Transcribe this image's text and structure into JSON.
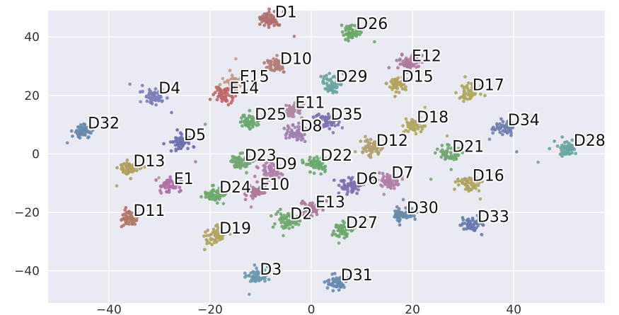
{
  "chart_data": {
    "type": "scatter",
    "title": "",
    "xlabel": "",
    "ylabel": "",
    "xlim": [
      -52,
      58
    ],
    "ylim": [
      -51,
      49
    ],
    "xticks": [
      -40,
      -20,
      0,
      20,
      40
    ],
    "yticks": [
      40,
      20,
      0,
      -20,
      -40
    ],
    "xtick_labels": [
      "−40",
      "−20",
      "0",
      "20",
      "40"
    ],
    "ytick_labels": [
      "40",
      "20",
      "0",
      "−20",
      "−40"
    ],
    "grid": true,
    "background": "#eaeaf2",
    "grid_color": "#ffffff",
    "clusters": [
      {
        "label": "D1",
        "x": -8,
        "y": 46,
        "color": "#b0706e"
      },
      {
        "label": "D26",
        "x": 8,
        "y": 42,
        "color": "#6aa86a"
      },
      {
        "label": "D10",
        "x": -7,
        "y": 30,
        "color": "#b0807a"
      },
      {
        "label": "E12",
        "x": 19,
        "y": 31,
        "color": "#b07a9c"
      },
      {
        "label": "E15",
        "x": -15,
        "y": 24,
        "color": "#c89888"
      },
      {
        "label": "D29",
        "x": 4,
        "y": 24,
        "color": "#6aa6a0"
      },
      {
        "label": "D15",
        "x": 17,
        "y": 24,
        "color": "#b0a460"
      },
      {
        "label": "D4",
        "x": -31,
        "y": 20,
        "color": "#8080b8"
      },
      {
        "label": "E14",
        "x": -17,
        "y": 20,
        "color": "#c06868"
      },
      {
        "label": "D17",
        "x": 31,
        "y": 21,
        "color": "#b0a860"
      },
      {
        "label": "E11",
        "x": -4,
        "y": 15,
        "color": "#b08aa0"
      },
      {
        "label": "D25",
        "x": -12,
        "y": 11,
        "color": "#6aa870"
      },
      {
        "label": "D35",
        "x": 3,
        "y": 11,
        "color": "#8070b0"
      },
      {
        "label": "D18",
        "x": 20,
        "y": 10,
        "color": "#b0a860"
      },
      {
        "label": "D34",
        "x": 38,
        "y": 9,
        "color": "#7080b0"
      },
      {
        "label": "D32",
        "x": -45,
        "y": 8,
        "color": "#6a8aa8"
      },
      {
        "label": "D8",
        "x": -3,
        "y": 7,
        "color": "#a080b0"
      },
      {
        "label": "D5",
        "x": -26,
        "y": 4,
        "color": "#7070b0"
      },
      {
        "label": "D28",
        "x": 51,
        "y": 2,
        "color": "#6aa6a0"
      },
      {
        "label": "D12",
        "x": 12,
        "y": 2,
        "color": "#b0a070"
      },
      {
        "label": "D21",
        "x": 27,
        "y": 0,
        "color": "#70a870"
      },
      {
        "label": "D23",
        "x": -14,
        "y": -3,
        "color": "#70a870"
      },
      {
        "label": "D22",
        "x": 1,
        "y": -3,
        "color": "#6aa870"
      },
      {
        "label": "D13",
        "x": -36,
        "y": -5,
        "color": "#b0a060"
      },
      {
        "label": "D9",
        "x": -8,
        "y": -6,
        "color": "#b080a8"
      },
      {
        "label": "E1",
        "x": -28,
        "y": -11,
        "color": "#b070a8"
      },
      {
        "label": "D7",
        "x": 15,
        "y": -9,
        "color": "#b080a8"
      },
      {
        "label": "D16",
        "x": 31,
        "y": -10,
        "color": "#b0a460"
      },
      {
        "label": "D6",
        "x": 8,
        "y": -11,
        "color": "#8070b0"
      },
      {
        "label": "D24",
        "x": -19,
        "y": -14,
        "color": "#70a870"
      },
      {
        "label": "E10",
        "x": -11,
        "y": -13,
        "color": "#b07a9c"
      },
      {
        "label": "E13",
        "x": 0,
        "y": -19,
        "color": "#b07a9c"
      },
      {
        "label": "D30",
        "x": 18,
        "y": -21,
        "color": "#6a8aa8"
      },
      {
        "label": "D11",
        "x": -36,
        "y": -22,
        "color": "#b07868"
      },
      {
        "label": "D2",
        "x": -5,
        "y": -23,
        "color": "#70a870"
      },
      {
        "label": "D33",
        "x": 32,
        "y": -24,
        "color": "#6a7ab0"
      },
      {
        "label": "D27",
        "x": 6,
        "y": -26,
        "color": "#6aa870"
      },
      {
        "label": "D19",
        "x": -19,
        "y": -28,
        "color": "#b0a460"
      },
      {
        "label": "D3",
        "x": -11,
        "y": -42,
        "color": "#6a9ab0"
      },
      {
        "label": "D31",
        "x": 5,
        "y": -44,
        "color": "#6a8ab0"
      }
    ]
  }
}
